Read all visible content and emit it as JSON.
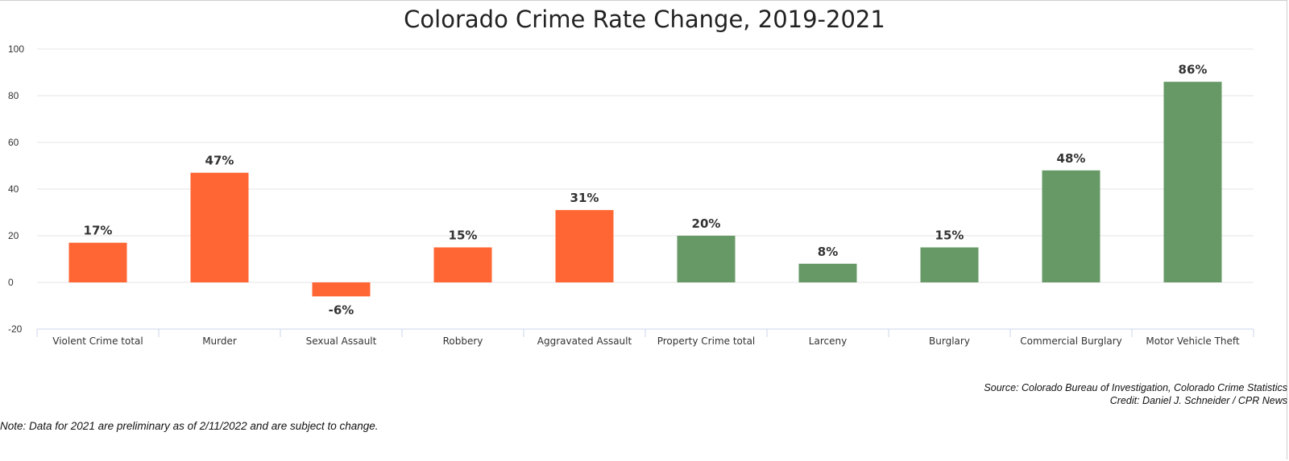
{
  "chart_data": {
    "type": "bar",
    "title": "Colorado Crime Rate Change, 2019-2021",
    "categories": [
      "Violent Crime total",
      "Murder",
      "Sexual Assault",
      "Robbery",
      "Aggravated Assault",
      "Property Crime total",
      "Larceny",
      "Burglary",
      "Commercial Burglary",
      "Motor Vehicle Theft"
    ],
    "values": [
      17,
      47,
      -6,
      15,
      31,
      20,
      8,
      15,
      48,
      86
    ],
    "data_labels": [
      "17%",
      "47%",
      "-6%",
      "15%",
      "31%",
      "20%",
      "8%",
      "15%",
      "48%",
      "86%"
    ],
    "bar_colors": [
      "#ff6633",
      "#ff6633",
      "#ff6633",
      "#ff6633",
      "#ff6633",
      "#669966",
      "#669966",
      "#669966",
      "#669966",
      "#669966"
    ],
    "ylim": [
      -20,
      100
    ],
    "yticks": [
      -20,
      0,
      20,
      40,
      60,
      80,
      100
    ],
    "xlabel": "",
    "ylabel": "",
    "grid": true,
    "legend": "none"
  },
  "footer": {
    "source": "Source: Colorado Bureau of Investigation, Colorado Crime Statistics",
    "credit": "Credit: Daniel J. Schneider / CPR News",
    "note": "Note: Data for 2021 are preliminary as of 2/11/2022 and are subject to change."
  }
}
